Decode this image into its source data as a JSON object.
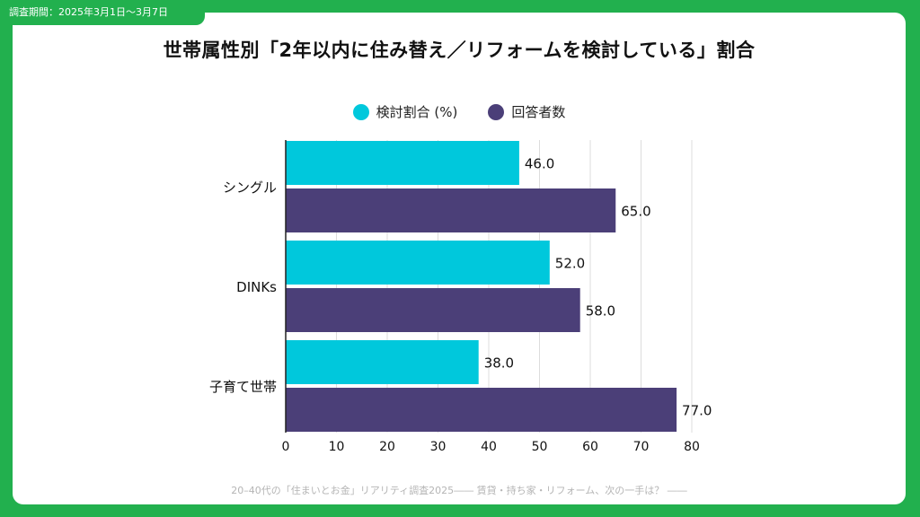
{
  "period_label": "調査期間：2025年3月1日～3月7日",
  "footer": "20–40代の「住まいとお金」リアリティ調査2025―― 賃貸・持ち家・リフォーム、次の一手は？ ――",
  "colors": {
    "frame": "#22b04e",
    "series_1": "#00c8dc",
    "series_2": "#4b3f78",
    "grid": "#dddddd"
  },
  "chart_data": {
    "type": "bar",
    "orientation": "horizontal",
    "title": "世帯属性別「2年以内に住み替え／リフォームを検討している」割合",
    "categories": [
      "シングル",
      "DINKs",
      "子育て世帯"
    ],
    "series": [
      {
        "name": "検討割合 (%)",
        "values": [
          46.0,
          52.0,
          38.0
        ]
      },
      {
        "name": "回答者数",
        "values": [
          65.0,
          58.0,
          77.0
        ]
      }
    ],
    "value_labels": [
      [
        "46.0",
        "52.0",
        "38.0"
      ],
      [
        "65.0",
        "58.0",
        "77.0"
      ]
    ],
    "xlim": [
      0,
      80
    ],
    "xticks": [
      "0",
      "10",
      "20",
      "30",
      "40",
      "50",
      "60",
      "70",
      "80"
    ],
    "xlabel": "",
    "ylabel": "",
    "grid": "vertical",
    "legend_position": "top-center"
  }
}
